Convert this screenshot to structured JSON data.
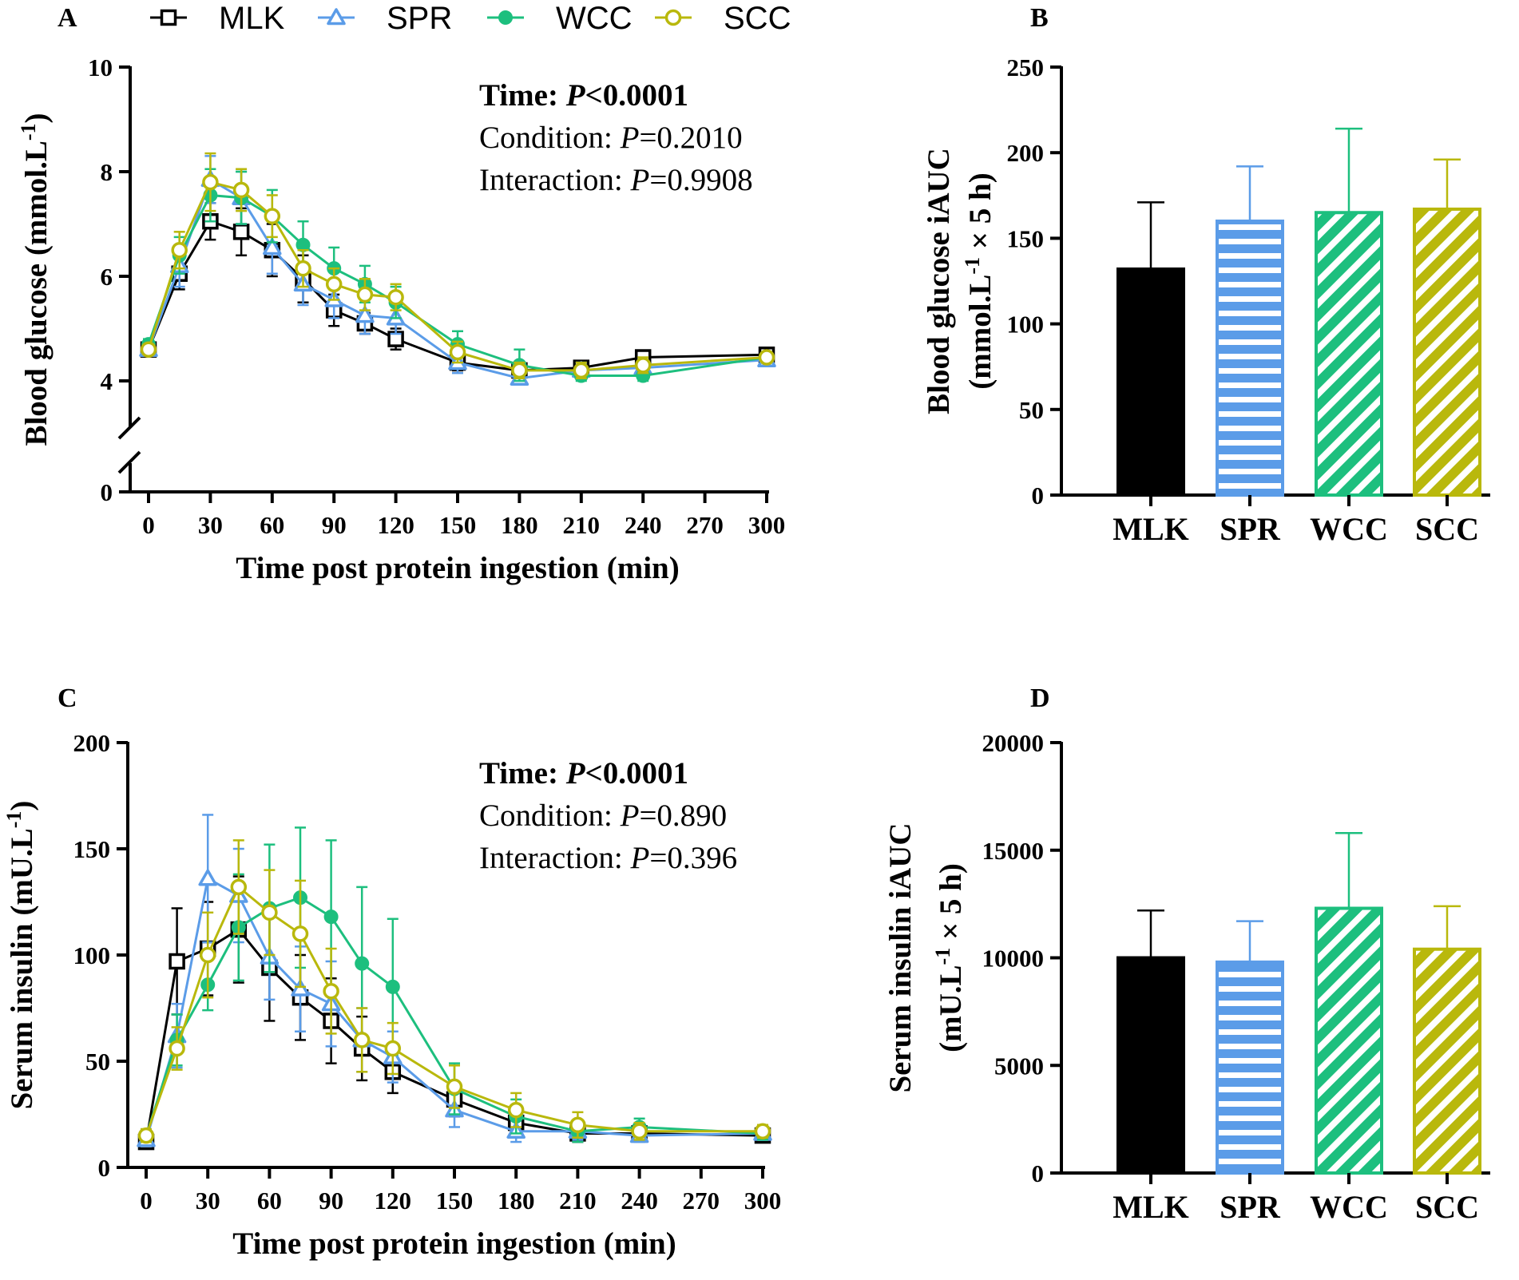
{
  "legend": [
    {
      "key": "MLK",
      "color": "#000000",
      "marker": "square"
    },
    {
      "key": "SPR",
      "color": "#5b9ce8",
      "marker": "triangle"
    },
    {
      "key": "WCC",
      "color": "#1dbf7e",
      "marker": "dot"
    },
    {
      "key": "SCC",
      "color": "#b9b80c",
      "marker": "circle"
    }
  ],
  "chart_data": [
    {
      "panel": "A",
      "type": "line",
      "ylabel_main": "Blood glucose (mmol.L",
      "ylabel_sup": "-1",
      "ylabel_end": ")",
      "xlabel": "Time post protein ingestion (min)",
      "x": [
        0,
        15,
        30,
        45,
        60,
        75,
        90,
        105,
        120,
        150,
        180,
        210,
        240,
        300
      ],
      "xticks": [
        "0",
        "30",
        "60",
        "90",
        "120",
        "150",
        "180",
        "210",
        "240",
        "270",
        "300"
      ],
      "yticks": [
        "0",
        "4",
        "6",
        "8",
        "10"
      ],
      "ylim": [
        0,
        10
      ],
      "axis_break": "between 0 and 4",
      "stats": {
        "time_label": "Time: ",
        "time_p": "P",
        "time_val": "<0.0001",
        "cond_label": "Condition: ",
        "cond_p": "P",
        "cond_val": "=0.2010",
        "inter_label": "Interaction: ",
        "inter_p": "P",
        "inter_val": "=0.9908"
      },
      "series": [
        {
          "name": "MLK",
          "values": [
            4.6,
            6.05,
            7.05,
            6.85,
            6.5,
            5.95,
            5.35,
            5.1,
            4.8,
            4.35,
            4.2,
            4.25,
            4.45,
            4.5
          ],
          "errors": [
            0.1,
            0.3,
            0.35,
            0.45,
            0.5,
            0.45,
            0.3,
            0.2,
            0.2,
            0.15,
            0.15,
            0.1,
            0.1,
            0.05
          ]
        },
        {
          "name": "SPR",
          "values": [
            4.6,
            6.2,
            7.85,
            7.5,
            6.55,
            5.85,
            5.55,
            5.25,
            5.2,
            4.35,
            4.05,
            4.2,
            4.25,
            4.4
          ],
          "errors": [
            0.1,
            0.4,
            0.45,
            0.5,
            0.5,
            0.4,
            0.35,
            0.35,
            0.3,
            0.2,
            0.15,
            0.15,
            0.15,
            0.1
          ]
        },
        {
          "name": "WCC",
          "values": [
            4.7,
            6.4,
            7.55,
            7.5,
            7.15,
            6.6,
            6.15,
            5.85,
            5.5,
            4.7,
            4.3,
            4.1,
            4.1,
            4.45
          ],
          "errors": [
            0.1,
            0.35,
            0.5,
            0.5,
            0.5,
            0.45,
            0.4,
            0.35,
            0.3,
            0.25,
            0.3,
            0.2,
            0.15,
            0.1
          ]
        },
        {
          "name": "SCC",
          "values": [
            4.6,
            6.5,
            7.8,
            7.65,
            7.15,
            6.15,
            5.85,
            5.65,
            5.6,
            4.55,
            4.2,
            4.2,
            4.3,
            4.45
          ],
          "errors": [
            0.1,
            0.35,
            0.55,
            0.4,
            0.4,
            0.35,
            0.3,
            0.3,
            0.25,
            0.2,
            0.15,
            0.15,
            0.15,
            0.1
          ]
        }
      ]
    },
    {
      "panel": "B",
      "type": "bar",
      "ylabel_line1": "Blood glucose iAUC",
      "ylabel_line2_main": "(mmol.L",
      "ylabel_line2_sup": "-1",
      "ylabel_line2_end": " × 5 h)",
      "categories": [
        "MLK",
        "SPR",
        "WCC",
        "SCC"
      ],
      "values": [
        132,
        160,
        165,
        167
      ],
      "errors": [
        39,
        32,
        49,
        29
      ],
      "yticks": [
        "0",
        "50",
        "100",
        "150",
        "200",
        "250"
      ],
      "ylim": [
        0,
        250
      ]
    },
    {
      "panel": "C",
      "type": "line",
      "ylabel_main": "Serum insulin (mU.L",
      "ylabel_sup": "-1",
      "ylabel_end": ")",
      "xlabel": "Time post protein ingestion (min)",
      "x": [
        0,
        15,
        30,
        45,
        60,
        75,
        90,
        105,
        120,
        150,
        180,
        210,
        240,
        300
      ],
      "xticks": [
        "0",
        "30",
        "60",
        "90",
        "120",
        "150",
        "180",
        "210",
        "240",
        "270",
        "300"
      ],
      "yticks": [
        "0",
        "50",
        "100",
        "150",
        "200"
      ],
      "ylim": [
        0,
        200
      ],
      "stats": {
        "time_label": "Time: ",
        "time_p": "P",
        "time_val": "<0.0001",
        "cond_label": "Condition: ",
        "cond_p": "P",
        "cond_val": "=0.890",
        "inter_label": "Interaction: ",
        "inter_p": "P",
        "inter_val": "=0.396"
      },
      "series": [
        {
          "name": "MLK",
          "values": [
            12,
            97,
            103,
            112,
            94,
            80,
            69,
            56,
            45,
            32,
            21,
            16,
            16,
            15
          ],
          "errors": [
            3,
            25,
            22,
            25,
            25,
            20,
            20,
            15,
            10,
            8,
            6,
            4,
            3,
            3
          ]
        },
        {
          "name": "SPR",
          "values": [
            13,
            62,
            136,
            128,
            99,
            84,
            77,
            60,
            52,
            27,
            17,
            17,
            15,
            16
          ],
          "errors": [
            3,
            15,
            30,
            22,
            20,
            20,
            20,
            15,
            12,
            8,
            5,
            4,
            3,
            3
          ]
        },
        {
          "name": "WCC",
          "values": [
            15,
            60,
            86,
            113,
            122,
            127,
            118,
            96,
            85,
            37,
            24,
            17,
            19,
            16
          ],
          "errors": [
            3,
            12,
            12,
            25,
            30,
            33,
            36,
            36,
            32,
            12,
            8,
            5,
            4,
            3
          ]
        },
        {
          "name": "SCC",
          "values": [
            15,
            56,
            100,
            132,
            120,
            110,
            83,
            60,
            56,
            38,
            27,
            20,
            17,
            17
          ],
          "errors": [
            3,
            10,
            20,
            22,
            20,
            25,
            20,
            15,
            12,
            10,
            8,
            6,
            4,
            3
          ]
        }
      ]
    },
    {
      "panel": "D",
      "type": "bar",
      "ylabel_line1": "Serum insulin iAUC",
      "ylabel_line2_main": "(mU.L",
      "ylabel_line2_sup": "-1",
      "ylabel_line2_end": " × 5 h)",
      "categories": [
        "MLK",
        "SPR",
        "WCC",
        "SCC"
      ],
      "values": [
        10000,
        9800,
        12300,
        10400
      ],
      "errors": [
        2200,
        1900,
        3500,
        2000
      ],
      "yticks": [
        "0",
        "5000",
        "10000",
        "15000",
        "20000"
      ],
      "ylim": [
        0,
        20000
      ]
    }
  ]
}
